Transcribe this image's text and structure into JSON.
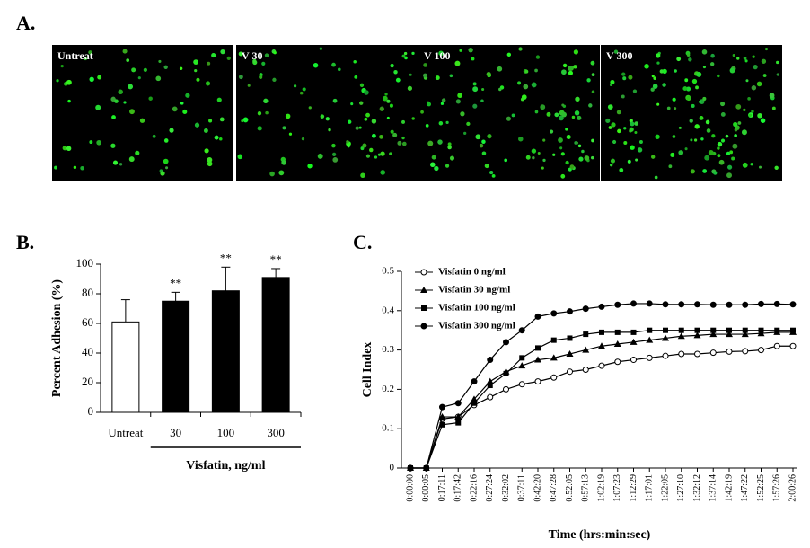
{
  "panel_labels": [
    "A.",
    "B.",
    "C."
  ],
  "images": {
    "labels": [
      "Untreat",
      "V 30",
      "V 100",
      "V 300"
    ]
  },
  "chart_data": [
    {
      "type": "bar",
      "ylabel": "Percent Adhesion (%)",
      "xlabel": "Visfatin, ng/ml",
      "categories": [
        "Untreat",
        "30",
        "100",
        "300"
      ],
      "values": [
        61,
        75,
        82,
        91
      ],
      "errors": [
        15,
        6,
        16,
        6
      ],
      "colors": [
        "#ffffff",
        "#000000",
        "#000000",
        "#000000"
      ],
      "edgecolor": "#000000",
      "annotations": [
        {
          "category": "30",
          "text": "**"
        },
        {
          "category": "100",
          "text": "**"
        },
        {
          "category": "300",
          "text": "**"
        }
      ],
      "ylim": [
        0,
        100
      ],
      "yticks": [
        0,
        20,
        40,
        60,
        80,
        100
      ]
    },
    {
      "type": "line",
      "ylabel": "Cell Index",
      "xlabel": "Time (hrs:min:sec)",
      "categories": [
        "0:00:00",
        "0:00:05",
        "0:17:11",
        "0:17:42",
        "0:22:16",
        "0:27:24",
        "0:32:02",
        "0:37:11",
        "0:42:20",
        "0:47:28",
        "0:52:05",
        "0:57:13",
        "1:02:19",
        "1:07:23",
        "1:12:29",
        "1:17:01",
        "1:22:05",
        "1:27:10",
        "1:32:12",
        "1:37:14",
        "1:42:19",
        "1:47:22",
        "1:52:25",
        "1:57:26",
        "2:00:26"
      ],
      "ylim": [
        0,
        0.5
      ],
      "yticks": [
        0,
        0.1,
        0.2,
        0.3,
        0.4,
        0.5
      ],
      "legend": "upper left",
      "series": [
        {
          "name": "Visfatin 0 ng/ml",
          "color": "#000000",
          "marker": "open-circle",
          "values": [
            0,
            0,
            0.125,
            0.13,
            0.16,
            0.18,
            0.2,
            0.213,
            0.22,
            0.23,
            0.245,
            0.25,
            0.26,
            0.27,
            0.275,
            0.28,
            0.285,
            0.29,
            0.29,
            0.293,
            0.296,
            0.297,
            0.3,
            0.31,
            0.31
          ]
        },
        {
          "name": "Visfatin 30 ng/ml",
          "color": "#000000",
          "marker": "triangle",
          "values": [
            0,
            0,
            0.13,
            0.13,
            0.175,
            0.22,
            0.245,
            0.26,
            0.275,
            0.28,
            0.29,
            0.3,
            0.31,
            0.315,
            0.32,
            0.325,
            0.33,
            0.335,
            0.337,
            0.34,
            0.34,
            0.34,
            0.342,
            0.345,
            0.345
          ]
        },
        {
          "name": "Visfatin 100 ng/ml",
          "color": "#000000",
          "marker": "square",
          "values": [
            0,
            0,
            0.11,
            0.115,
            0.165,
            0.21,
            0.24,
            0.28,
            0.305,
            0.325,
            0.33,
            0.34,
            0.345,
            0.345,
            0.345,
            0.35,
            0.35,
            0.35,
            0.35,
            0.35,
            0.35,
            0.35,
            0.35,
            0.35,
            0.35
          ]
        },
        {
          "name": "Visfatin 300 ng/ml",
          "color": "#000000",
          "marker": "circle",
          "values": [
            0,
            0,
            0.155,
            0.165,
            0.22,
            0.275,
            0.32,
            0.35,
            0.385,
            0.393,
            0.398,
            0.405,
            0.41,
            0.415,
            0.418,
            0.418,
            0.416,
            0.416,
            0.416,
            0.415,
            0.415,
            0.415,
            0.417,
            0.417,
            0.416
          ]
        }
      ]
    }
  ]
}
